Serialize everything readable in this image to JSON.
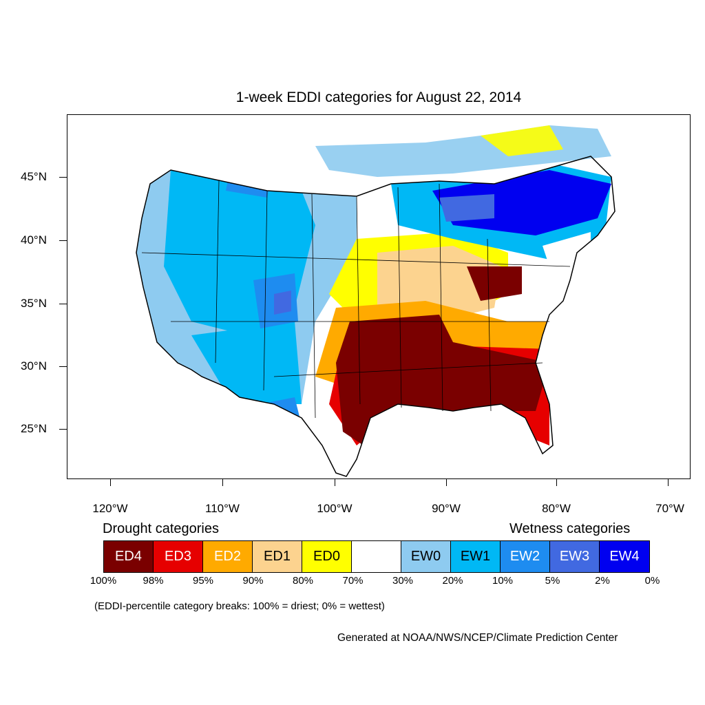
{
  "title": "1-week EDDI categories for August 22, 2014",
  "map": {
    "projection": "Lambert conformal, contiguous United States",
    "lat_labels": [
      "45°N",
      "40°N",
      "35°N",
      "30°N",
      "25°N"
    ],
    "lon_labels": [
      "120°W",
      "110°W",
      "100°W",
      "90°W",
      "80°W",
      "70°W"
    ],
    "regions": [
      {
        "name": "southern plains and lower Mississippi valley",
        "category": "ED4"
      },
      {
        "name": "Ohio valley",
        "category": "ED4"
      },
      {
        "name": "Southeast",
        "category": "ED3"
      },
      {
        "name": "central plains and midwest",
        "category": "ED1"
      },
      {
        "name": "mid-Atlantic",
        "category": "ED2"
      },
      {
        "name": "Intermountain West and Rockies",
        "category": "EW1"
      },
      {
        "name": "Southwest",
        "category": "EW2"
      },
      {
        "name": "Great Lakes and Northeast",
        "category": "EW4"
      }
    ]
  },
  "legend": {
    "drought_heading": "Drought categories",
    "wetness_heading": "Wetness categories",
    "categories": [
      {
        "label": "ED4",
        "color": "#7a0000",
        "text_color": "#ffffff"
      },
      {
        "label": "ED3",
        "color": "#e60000",
        "text_color": "#ffffff"
      },
      {
        "label": "ED2",
        "color": "#ffaa00",
        "text_color": "#ffffff"
      },
      {
        "label": "ED1",
        "color": "#fcd38f",
        "text_color": "#000000"
      },
      {
        "label": "ED0",
        "color": "#ffff00",
        "text_color": "#000000"
      },
      {
        "label": "",
        "color": "#ffffff",
        "text_color": "#000000"
      },
      {
        "label": "EW0",
        "color": "#8ecbf0",
        "text_color": "#000000"
      },
      {
        "label": "EW1",
        "color": "#00b8f5",
        "text_color": "#000000"
      },
      {
        "label": "EW2",
        "color": "#1e8cf0",
        "text_color": "#ffffff"
      },
      {
        "label": "EW3",
        "color": "#4169e1",
        "text_color": "#ffffff"
      },
      {
        "label": "EW4",
        "color": "#0000f0",
        "text_color": "#ffffff"
      }
    ],
    "percentiles": [
      "100%",
      "98%",
      "95%",
      "90%",
      "80%",
      "70%",
      "30%",
      "20%",
      "10%",
      "5%",
      "2%",
      "0%"
    ],
    "note": "(EDDI-percentile category breaks: 100% = driest; 0% = wettest)"
  },
  "credit": "Generated at NOAA/NWS/NCEP/Climate Prediction Center"
}
